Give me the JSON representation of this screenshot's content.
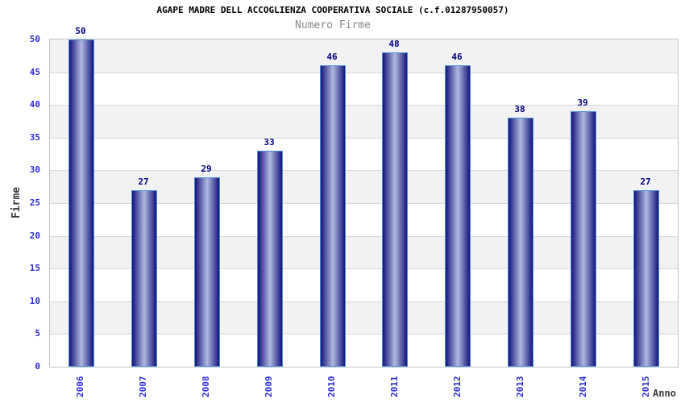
{
  "chart_data": {
    "type": "bar",
    "title": "AGAPE MADRE DELL ACCOGLIENZA COOPERATIVA SOCIALE (c.f.01287950057)",
    "subtitle": "Numero Firme",
    "categories": [
      "2006",
      "2007",
      "2008",
      "2009",
      "2010",
      "2011",
      "2012",
      "2013",
      "2014",
      "2015"
    ],
    "values": [
      50,
      27,
      29,
      33,
      46,
      48,
      46,
      38,
      39,
      27
    ],
    "xlabel": "Anno",
    "ylabel": "Firme",
    "ylim": [
      0,
      50
    ],
    "ytick_step": 5,
    "ytick_labels": [
      "0",
      "5",
      "10",
      "15",
      "20",
      "25",
      "30",
      "35",
      "40",
      "45",
      "50"
    ],
    "legend": "none",
    "grid": "alternating horizontal bands, gray topmost",
    "colors": {
      "bar_dark": "#14147c",
      "bar_light": "#b0bae0",
      "bar_border": "#4a90d8",
      "value_label": "#00007e",
      "tick_label_blue": "#2b2bd5",
      "axis_title": "#3c3c3c",
      "title": "#000000",
      "subtitle": "#888888",
      "band_gray": "#f2f2f2",
      "band_white": "#ffffff",
      "gridline": "#d9d9d9",
      "plot_border": "#c6c6c6"
    }
  }
}
